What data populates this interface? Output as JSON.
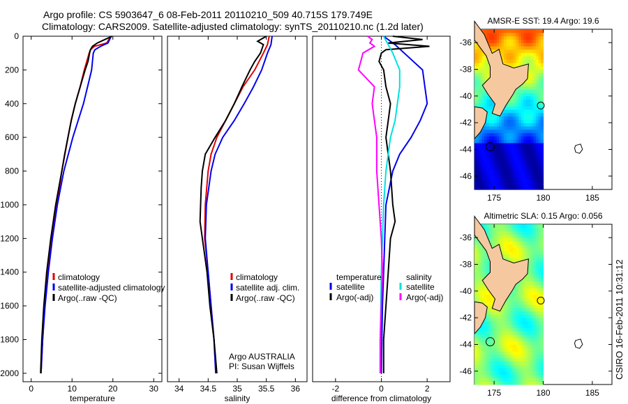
{
  "header": {
    "line1": "Argo profile: CS 5903647_6 08-Feb-2011 20110210_509 40.715S 179.749E",
    "line2": "Climatology: CARS2009. Satellite-adjusted climatology: synTS_20110210.nc (1.2d later)"
  },
  "side_label": "CSIRO 16-Feb-2011 10:31:12",
  "panel_notes": [
    "Argo AUSTRALIA",
    "PI: Susan Wijffels"
  ],
  "colors": {
    "climatology": "#e00000",
    "satellite": "#0000ee",
    "argo": "#000000",
    "salinity_satellite": "#00e0e0",
    "salinity_argo": "#ff00ff",
    "land": "#f5c8a0"
  },
  "chart_data": [
    {
      "type": "line",
      "xlabel": "temperature",
      "xlim": [
        -2,
        32
      ],
      "ylim": [
        0,
        2050
      ],
      "xticks": [
        0,
        10,
        20,
        30
      ],
      "yticks": [
        0,
        200,
        400,
        600,
        800,
        1000,
        1200,
        1400,
        1600,
        1800,
        2000
      ],
      "legend_placement": "lower-right",
      "series": [
        {
          "name": "climatology",
          "color": "#e00000",
          "depth": [
            0,
            40,
            60,
            80,
            100,
            150,
            200,
            300,
            400,
            500,
            600,
            800,
            1000,
            1200,
            1400,
            1600,
            1800,
            2000
          ],
          "values": [
            19.5,
            18.5,
            15.5,
            14.5,
            14.2,
            13.6,
            13.0,
            12.0,
            10.8,
            9.8,
            9.0,
            7.5,
            6.3,
            5.0,
            4.0,
            3.3,
            2.8,
            2.4
          ]
        },
        {
          "name": "satellite-adjusted climatology",
          "color": "#0000ee",
          "depth": [
            0,
            40,
            60,
            80,
            100,
            150,
            200,
            300,
            400,
            500,
            600,
            800,
            1000,
            1200,
            1400,
            1600,
            1800,
            2000
          ],
          "values": [
            19.6,
            18.8,
            17.0,
            15.6,
            15.2,
            15.0,
            14.8,
            13.8,
            12.8,
            11.5,
            10.2,
            8.0,
            6.4,
            5.2,
            4.2,
            3.4,
            2.8,
            2.4
          ]
        },
        {
          "name": "Argo(..raw -QC)",
          "color": "#000000",
          "depth": [
            0,
            20,
            40,
            60,
            80,
            100,
            150,
            200,
            300,
            400,
            500,
            600,
            700,
            800,
            1000,
            1200,
            1400,
            1600,
            1800,
            2000
          ],
          "values": [
            19.8,
            18.0,
            16.2,
            15.0,
            14.5,
            14.3,
            13.9,
            13.2,
            12.0,
            10.8,
            9.8,
            9.0,
            8.2,
            7.5,
            6.0,
            4.8,
            3.8,
            3.1,
            2.6,
            2.3
          ]
        }
      ]
    },
    {
      "type": "line",
      "xlabel": "salinity",
      "xlim": [
        33.8,
        36.2
      ],
      "ylim": [
        0,
        2050
      ],
      "xticks": [
        34,
        34.5,
        35,
        35.5,
        36
      ],
      "legend_placement": "lower-right",
      "series": [
        {
          "name": "climatology",
          "color": "#e00000",
          "depth": [
            0,
            50,
            100,
            200,
            300,
            400,
            500,
            600,
            700,
            800,
            1000,
            1200,
            1400,
            1600,
            1800,
            2000
          ],
          "values": [
            35.55,
            35.52,
            35.45,
            35.3,
            35.1,
            34.95,
            34.8,
            34.65,
            34.55,
            34.5,
            34.45,
            34.44,
            34.5,
            34.55,
            34.6,
            34.63
          ]
        },
        {
          "name": "satellite adj. clim.",
          "color": "#0000ee",
          "depth": [
            0,
            50,
            100,
            200,
            300,
            400,
            500,
            600,
            700,
            800,
            1000,
            1200,
            1400,
            1600,
            1800,
            2000
          ],
          "values": [
            35.6,
            35.58,
            35.52,
            35.42,
            35.28,
            35.12,
            34.95,
            34.75,
            34.62,
            34.55,
            34.47,
            34.45,
            34.5,
            34.55,
            34.6,
            34.63
          ]
        },
        {
          "name": "Argo(..raw -QC)",
          "color": "#000000",
          "depth": [
            0,
            30,
            50,
            100,
            150,
            200,
            300,
            400,
            500,
            600,
            700,
            800,
            900,
            1000,
            1100,
            1200,
            1400,
            1600,
            1800,
            2000
          ],
          "values": [
            35.5,
            35.35,
            35.45,
            35.4,
            35.3,
            35.22,
            35.08,
            34.95,
            34.8,
            34.62,
            34.45,
            34.4,
            34.38,
            34.37,
            34.36,
            34.4,
            34.48,
            34.53,
            34.6,
            34.65
          ]
        }
      ]
    },
    {
      "type": "line",
      "xlabel": "difference from climatology",
      "xlim": [
        -3,
        3
      ],
      "ylim": [
        0,
        2050
      ],
      "xticks": [
        -2,
        0,
        2
      ],
      "legend_placement": "lower",
      "legend_groups": [
        "temperature",
        "salinity"
      ],
      "series": [
        {
          "name": "temperature satellite",
          "color": "#0000ee",
          "depth": [
            0,
            50,
            100,
            200,
            300,
            400,
            500,
            600,
            700,
            800,
            1000,
            1200,
            1400,
            1600,
            1800,
            2000
          ],
          "values": [
            0.1,
            0.6,
            1.0,
            1.8,
            1.9,
            2.0,
            1.7,
            1.3,
            0.8,
            0.5,
            0.2,
            0.15,
            0.1,
            0.05,
            0.02,
            0.0
          ]
        },
        {
          "name": "temperature Argo(-adj)",
          "color": "#000000",
          "depth": [
            0,
            20,
            40,
            60,
            80,
            100,
            150,
            200,
            300,
            400,
            500,
            600,
            800,
            1000,
            1100,
            1200,
            1400,
            1600,
            1800,
            2000
          ],
          "values": [
            0.5,
            1.8,
            0.3,
            2.1,
            0.2,
            0.0,
            -0.1,
            0.1,
            0.2,
            0.4,
            0.3,
            0.2,
            0.4,
            0.5,
            0.6,
            0.4,
            0.3,
            0.2,
            0.1,
            0.1
          ]
        },
        {
          "name": "salinity satellite",
          "color": "#00e0e0",
          "depth": [
            0,
            50,
            100,
            200,
            300,
            400,
            500,
            600,
            800,
            1000,
            1200,
            1400,
            1600,
            1800,
            2000
          ],
          "values": [
            0.1,
            0.3,
            0.5,
            0.8,
            0.8,
            0.7,
            0.6,
            0.4,
            0.2,
            0.1,
            0.05,
            0.0,
            -0.02,
            -0.05,
            -0.05
          ]
        },
        {
          "name": "salinity Argo(-adj)",
          "color": "#ff00ff",
          "depth": [
            0,
            20,
            40,
            60,
            100,
            150,
            200,
            300,
            400,
            500,
            600,
            800,
            1000,
            1200,
            1400,
            1600,
            1800,
            2000
          ],
          "values": [
            -0.6,
            -0.4,
            -0.5,
            -0.3,
            -0.8,
            -0.9,
            -1.0,
            -0.3,
            -0.4,
            -0.3,
            -0.2,
            -0.2,
            -0.1,
            0.0,
            0.05,
            0.0,
            -0.05,
            -0.05
          ]
        }
      ]
    },
    {
      "type": "heatmap",
      "title": "AMSR-E SST: 19.4 Argo: 19.6",
      "xlim": [
        173,
        187
      ],
      "ylim": [
        -47,
        -35
      ],
      "xticks": [
        175,
        180,
        185
      ],
      "yticks": [
        -36,
        -38,
        -40,
        -42,
        -44,
        -46
      ],
      "colormap": "jet"
    },
    {
      "type": "heatmap",
      "title": "Altimetric SLA: 0.15 Argo: 0.056",
      "xlim": [
        173,
        187
      ],
      "ylim": [
        -47,
        -35
      ],
      "xticks": [
        175,
        180,
        185
      ],
      "yticks": [
        -36,
        -38,
        -40,
        -42,
        -44,
        -46
      ],
      "colormap": "jet"
    }
  ]
}
